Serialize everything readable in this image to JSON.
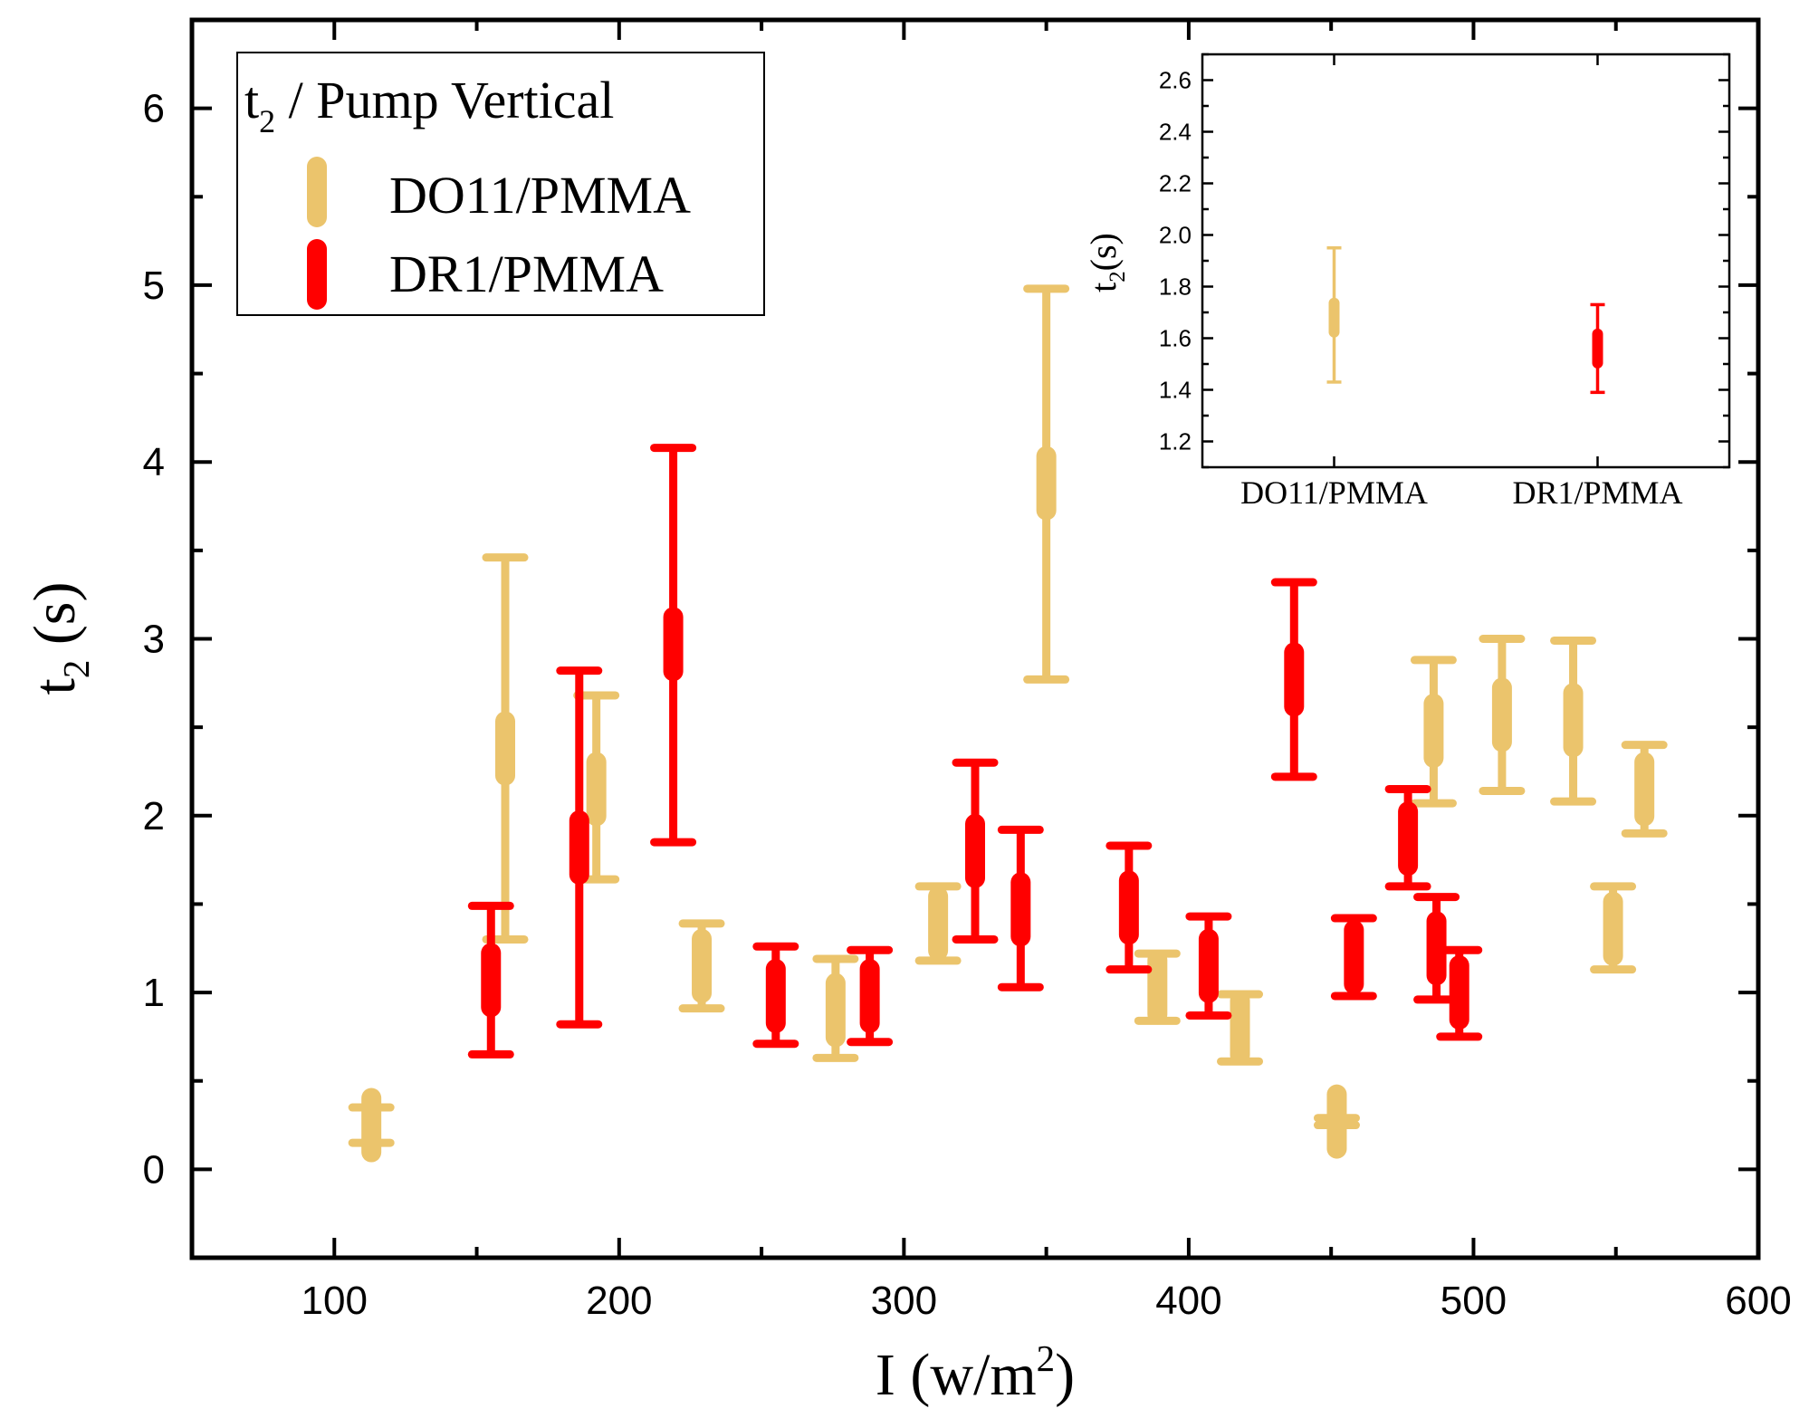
{
  "chart_data": [
    {
      "type": "errorbar",
      "xlabel": {
        "main": "I (w/m",
        "sup": "2",
        "tail": ")"
      },
      "ylabel": {
        "main": "t",
        "sub": "2",
        "tail": " (s)"
      },
      "xlim": [
        50,
        600
      ],
      "ylim": [
        -0.5,
        6.5
      ],
      "xticks": [
        100,
        200,
        300,
        400,
        500,
        600
      ],
      "yticks": [
        0,
        1,
        2,
        3,
        4,
        5,
        6
      ],
      "legend": {
        "position": "top-left",
        "title": {
          "main": "t",
          "sub": "2",
          "tail": " / Pump Vertical"
        }
      },
      "series": [
        {
          "name": "DO11/PMMA",
          "color": "#EBC46C",
          "points": [
            {
              "x": 113,
              "y": 0.25,
              "low": 0.15,
              "high": 0.35
            },
            {
              "x": 160,
              "y": 2.38,
              "low": 1.3,
              "high": 3.46
            },
            {
              "x": 192,
              "y": 2.15,
              "low": 1.64,
              "high": 2.68
            },
            {
              "x": 229,
              "y": 1.15,
              "low": 0.91,
              "high": 1.39
            },
            {
              "x": 276,
              "y": 0.9,
              "low": 0.63,
              "high": 1.19
            },
            {
              "x": 312,
              "y": 1.39,
              "low": 1.18,
              "high": 1.6
            },
            {
              "x": 350,
              "y": 3.88,
              "low": 2.77,
              "high": 4.98
            },
            {
              "x": 389,
              "y": 1.03,
              "low": 0.84,
              "high": 1.22
            },
            {
              "x": 418,
              "y": 0.8,
              "low": 0.61,
              "high": 0.99
            },
            {
              "x": 452,
              "y": 0.27,
              "low": 0.25,
              "high": 0.29
            },
            {
              "x": 486,
              "y": 2.48,
              "low": 2.07,
              "high": 2.88
            },
            {
              "x": 510,
              "y": 2.57,
              "low": 2.14,
              "high": 3.0
            },
            {
              "x": 535,
              "y": 2.54,
              "low": 2.08,
              "high": 2.99
            },
            {
              "x": 549,
              "y": 1.36,
              "low": 1.13,
              "high": 1.6
            },
            {
              "x": 560,
              "y": 2.15,
              "low": 1.9,
              "high": 2.4
            }
          ]
        },
        {
          "name": "DR1/PMMA",
          "color": "#FF0000",
          "points": [
            {
              "x": 155,
              "y": 1.07,
              "low": 0.65,
              "high": 1.49
            },
            {
              "x": 186,
              "y": 1.82,
              "low": 0.82,
              "high": 2.82
            },
            {
              "x": 219,
              "y": 2.97,
              "low": 1.85,
              "high": 4.08
            },
            {
              "x": 255,
              "y": 0.98,
              "low": 0.71,
              "high": 1.26
            },
            {
              "x": 288,
              "y": 0.98,
              "low": 0.72,
              "high": 1.24
            },
            {
              "x": 325,
              "y": 1.8,
              "low": 1.3,
              "high": 2.3
            },
            {
              "x": 341,
              "y": 1.47,
              "low": 1.03,
              "high": 1.92
            },
            {
              "x": 379,
              "y": 1.48,
              "low": 1.13,
              "high": 1.83
            },
            {
              "x": 407,
              "y": 1.15,
              "low": 0.87,
              "high": 1.43
            },
            {
              "x": 437,
              "y": 2.77,
              "low": 2.22,
              "high": 3.32
            },
            {
              "x": 458,
              "y": 1.2,
              "low": 0.98,
              "high": 1.42
            },
            {
              "x": 477,
              "y": 1.87,
              "low": 1.6,
              "high": 2.15
            },
            {
              "x": 487,
              "y": 1.25,
              "low": 0.96,
              "high": 1.54
            },
            {
              "x": 495,
              "y": 1.0,
              "low": 0.75,
              "high": 1.24
            }
          ]
        }
      ]
    },
    {
      "type": "errorbar",
      "position": "top-right inset",
      "categories": [
        "DO11/PMMA",
        "DR1/PMMA"
      ],
      "ylabel": {
        "main": "t",
        "sub": "2",
        "tail": "(s)"
      },
      "ylim": [
        1.1,
        2.7
      ],
      "yticks": [
        1.2,
        1.4,
        1.6,
        1.8,
        2.0,
        2.2,
        2.4,
        2.6
      ],
      "ytick_labels": [
        "1.2",
        "1.4",
        "1.6",
        "1.8",
        "2.0",
        "2.2",
        "2.4",
        "2.6"
      ],
      "points": [
        {
          "category": "DO11/PMMA",
          "y": 1.68,
          "low": 1.43,
          "high": 1.95,
          "color": "#EBC46C"
        },
        {
          "category": "DR1/PMMA",
          "y": 1.56,
          "low": 1.39,
          "high": 1.73,
          "color": "#FF0000"
        }
      ]
    }
  ]
}
